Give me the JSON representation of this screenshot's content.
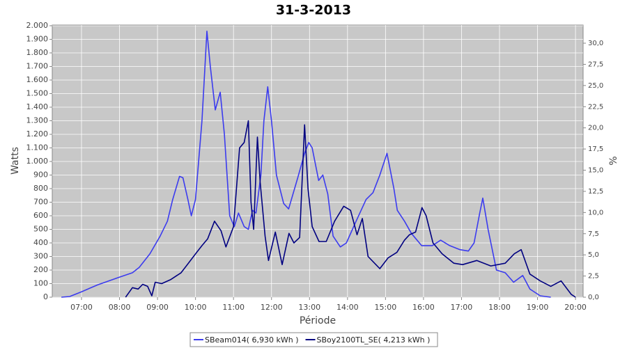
{
  "chart_data": {
    "type": "line",
    "title": "31-3-2013",
    "xlabel": "Période",
    "ylabel": "Watts",
    "y2label": "%",
    "xlim": [
      6.23,
      20.2
    ],
    "xticks": [
      {
        "value": 7,
        "label": "07:00"
      },
      {
        "value": 8,
        "label": "08:00"
      },
      {
        "value": 9,
        "label": "09:00"
      },
      {
        "value": 10,
        "label": "10:00"
      },
      {
        "value": 11,
        "label": "11:00"
      },
      {
        "value": 12,
        "label": "12:00"
      },
      {
        "value": 13,
        "label": "13:00"
      },
      {
        "value": 14,
        "label": "14:00"
      },
      {
        "value": 15,
        "label": "15:00"
      },
      {
        "value": 16,
        "label": "16:00"
      },
      {
        "value": 17,
        "label": "17:00"
      },
      {
        "value": 18,
        "label": "18:00"
      },
      {
        "value": 19,
        "label": "19:00"
      },
      {
        "value": 20,
        "label": "20:00"
      }
    ],
    "ylim": [
      0,
      2005
    ],
    "yticks": [
      0,
      100,
      200,
      300,
      400,
      500,
      600,
      700,
      800,
      900,
      {
        "value": 1000,
        "label": "1.000"
      },
      {
        "value": 1100,
        "label": "1.100"
      },
      {
        "value": 1200,
        "label": "1.200"
      },
      {
        "value": 1300,
        "label": "1.300"
      },
      {
        "value": 1400,
        "label": "1.400"
      },
      {
        "value": 1500,
        "label": "1.500"
      },
      {
        "value": 1600,
        "label": "1.600"
      },
      {
        "value": 1700,
        "label": "1.700"
      },
      {
        "value": 1800,
        "label": "1.800"
      },
      {
        "value": 1900,
        "label": "1.900"
      },
      {
        "value": 2000,
        "label": "2.000"
      }
    ],
    "y2lim": [
      0,
      32.14
    ],
    "y2ticks": [
      {
        "value": 0,
        "label": "0,0"
      },
      {
        "value": 2.5,
        "label": "2,5"
      },
      {
        "value": 5,
        "label": "5,0"
      },
      {
        "value": 7.5,
        "label": "7,5"
      },
      {
        "value": 10,
        "label": "10,0"
      },
      {
        "value": 12.5,
        "label": "12,5"
      },
      {
        "value": 15,
        "label": "15,0"
      },
      {
        "value": 17.5,
        "label": "17,5"
      },
      {
        "value": 20,
        "label": "20,0"
      },
      {
        "value": 22.5,
        "label": "22,5"
      },
      {
        "value": 25,
        "label": "25,0"
      },
      {
        "value": 27.5,
        "label": "27,5"
      },
      {
        "value": 30,
        "label": "30,0"
      }
    ],
    "grid": true,
    "series": [
      {
        "name": "SBeam014( 6,930 kWh )",
        "color": "#3b3bef",
        "x": [
          6.47,
          6.69,
          7.0,
          7.42,
          7.97,
          8.34,
          8.52,
          8.8,
          9.07,
          9.26,
          9.4,
          9.58,
          9.67,
          9.8,
          9.89,
          10.0,
          10.17,
          10.3,
          10.39,
          10.52,
          10.65,
          10.76,
          10.9,
          11.02,
          11.13,
          11.28,
          11.39,
          11.5,
          11.59,
          11.72,
          11.8,
          11.9,
          12.0,
          12.13,
          12.32,
          12.45,
          12.69,
          12.87,
          12.98,
          13.07,
          13.24,
          13.35,
          13.48,
          13.62,
          13.81,
          13.97,
          14.21,
          14.49,
          14.67,
          14.85,
          15.04,
          15.22,
          15.31,
          15.5,
          15.68,
          15.95,
          16.23,
          16.45,
          16.69,
          16.96,
          17.18,
          17.33,
          17.48,
          17.56,
          17.7,
          17.92,
          18.15,
          18.37,
          18.61,
          18.8,
          19.07,
          19.35
        ],
        "values": [
          0,
          5,
          40,
          90,
          145,
          180,
          220,
          320,
          450,
          560,
          720,
          890,
          880,
          720,
          600,
          720,
          1300,
          1960,
          1700,
          1380,
          1510,
          1200,
          600,
          520,
          620,
          520,
          500,
          640,
          620,
          900,
          1300,
          1550,
          1300,
          900,
          690,
          650,
          880,
          1060,
          1140,
          1100,
          860,
          900,
          760,
          450,
          370,
          400,
          550,
          720,
          770,
          900,
          1060,
          800,
          640,
          560,
          470,
          380,
          380,
          420,
          380,
          350,
          340,
          400,
          620,
          730,
          500,
          200,
          180,
          110,
          160,
          60,
          10,
          0
        ]
      },
      {
        "name": "SBoy2100TL_SE( 4,213 kWh )",
        "color": "#000080",
        "x": [
          8.16,
          8.34,
          8.49,
          8.61,
          8.74,
          8.85,
          8.94,
          9.11,
          9.35,
          9.62,
          9.84,
          10.03,
          10.17,
          10.32,
          10.5,
          10.67,
          10.8,
          11.0,
          11.16,
          11.28,
          11.39,
          11.46,
          11.53,
          11.63,
          11.7,
          11.83,
          11.92,
          12.1,
          12.28,
          12.46,
          12.59,
          12.74,
          12.87,
          12.96,
          13.07,
          13.25,
          13.44,
          13.66,
          13.9,
          14.08,
          14.25,
          14.39,
          14.54,
          14.85,
          15.07,
          15.3,
          15.5,
          15.63,
          15.79,
          15.96,
          16.07,
          16.25,
          16.49,
          16.8,
          17.03,
          17.4,
          17.77,
          18.15,
          18.39,
          18.57,
          18.8,
          19.07,
          19.35,
          19.62,
          19.89,
          20.0
        ],
        "values": [
          0,
          70,
          60,
          95,
          80,
          10,
          110,
          100,
          130,
          180,
          260,
          330,
          380,
          430,
          560,
          490,
          370,
          520,
          1100,
          1140,
          1300,
          700,
          500,
          1180,
          850,
          450,
          270,
          480,
          240,
          470,
          400,
          440,
          1270,
          800,
          520,
          410,
          410,
          560,
          670,
          640,
          460,
          580,
          300,
          210,
          290,
          330,
          420,
          460,
          480,
          660,
          600,
          400,
          320,
          250,
          240,
          270,
          230,
          250,
          320,
          350,
          170,
          120,
          80,
          120,
          20,
          0
        ]
      }
    ]
  }
}
